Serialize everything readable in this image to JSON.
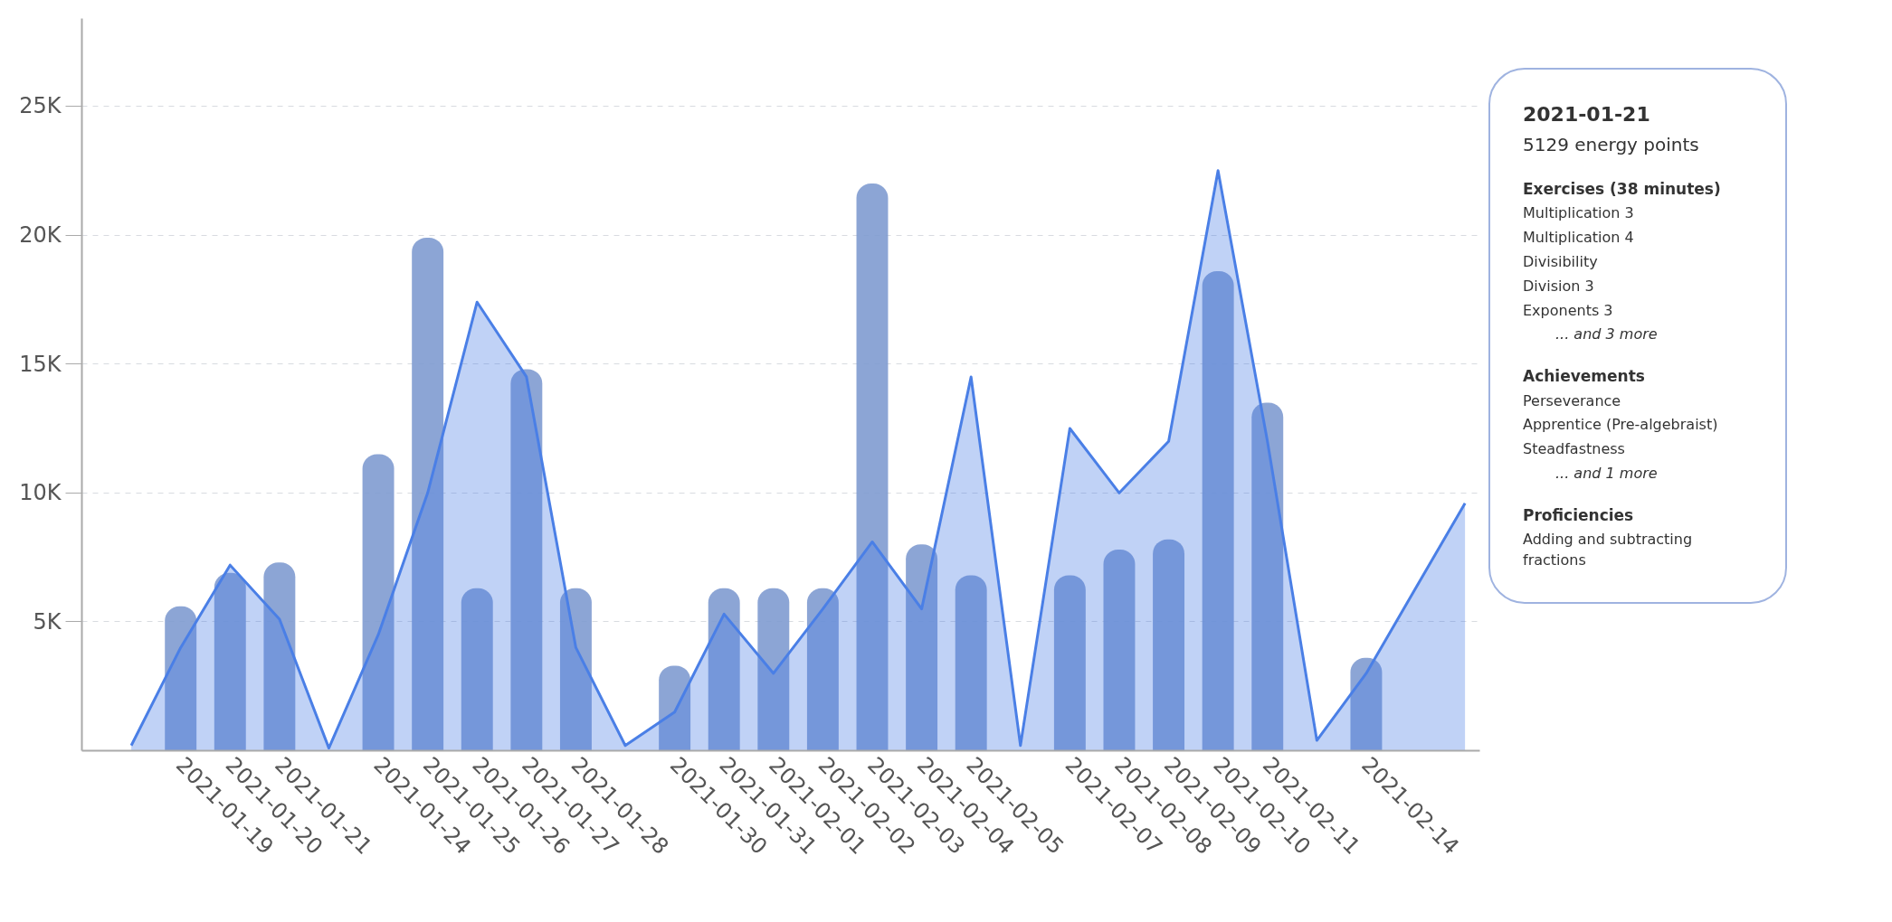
{
  "chart_data": {
    "type": "bar",
    "categories": [
      null,
      "2021-01-19",
      "2021-01-20",
      "2021-01-21",
      null,
      "2021-01-24",
      "2021-01-25",
      "2021-01-26",
      "2021-01-27",
      "2021-01-28",
      null,
      "2021-01-30",
      "2021-01-31",
      "2021-02-01",
      "2021-02-02",
      "2021-02-03",
      "2021-02-04",
      "2021-02-05",
      null,
      "2021-02-07",
      "2021-02-08",
      "2021-02-09",
      "2021-02-10",
      "2021-02-11",
      null,
      "2021-02-14",
      null,
      null
    ],
    "series": [
      {
        "color": "#7f9bd0",
        "values": [
          null,
          5600,
          6900,
          7300,
          null,
          11500,
          19900,
          6300,
          14800,
          6300,
          null,
          3300,
          6300,
          6300,
          6300,
          22000,
          8000,
          6800,
          null,
          6800,
          7800,
          8200,
          18600,
          13500,
          null,
          3600,
          null,
          null
        ]
      },
      {
        "type": "area",
        "color": "#4a7fe6",
        "values": [
          200,
          4000,
          7200,
          5100,
          100,
          4500,
          10000,
          17400,
          14500,
          4000,
          200,
          1500,
          5300,
          3000,
          5500,
          8100,
          5500,
          14500,
          200,
          12500,
          10000,
          12000,
          22500,
          12000,
          400,
          3000,
          6300,
          9600
        ]
      }
    ],
    "ylim": [
      0,
      28400
    ],
    "yticks": [
      {
        "value": 5000,
        "label": "5K"
      },
      {
        "value": 10000,
        "label": "10K"
      },
      {
        "value": 15000,
        "label": "15K"
      },
      {
        "value": 20000,
        "label": "20K"
      },
      {
        "value": 25000,
        "label": "25K"
      }
    ],
    "grid": "y",
    "annotations": [
      "2021-01-21",
      "5129 energy points",
      "Exercises (38 minutes)",
      "Multiplication 3",
      "Multiplication 4",
      "Divisibility",
      "Division 3",
      "Exponents 3",
      "... and 3 more",
      "Achievements",
      "Perseverance",
      "Apprentice (Pre-algebraist)",
      "Steadfastness",
      "... and 1 more",
      "Proficiencies",
      "Adding and subtracting fractions"
    ]
  }
}
